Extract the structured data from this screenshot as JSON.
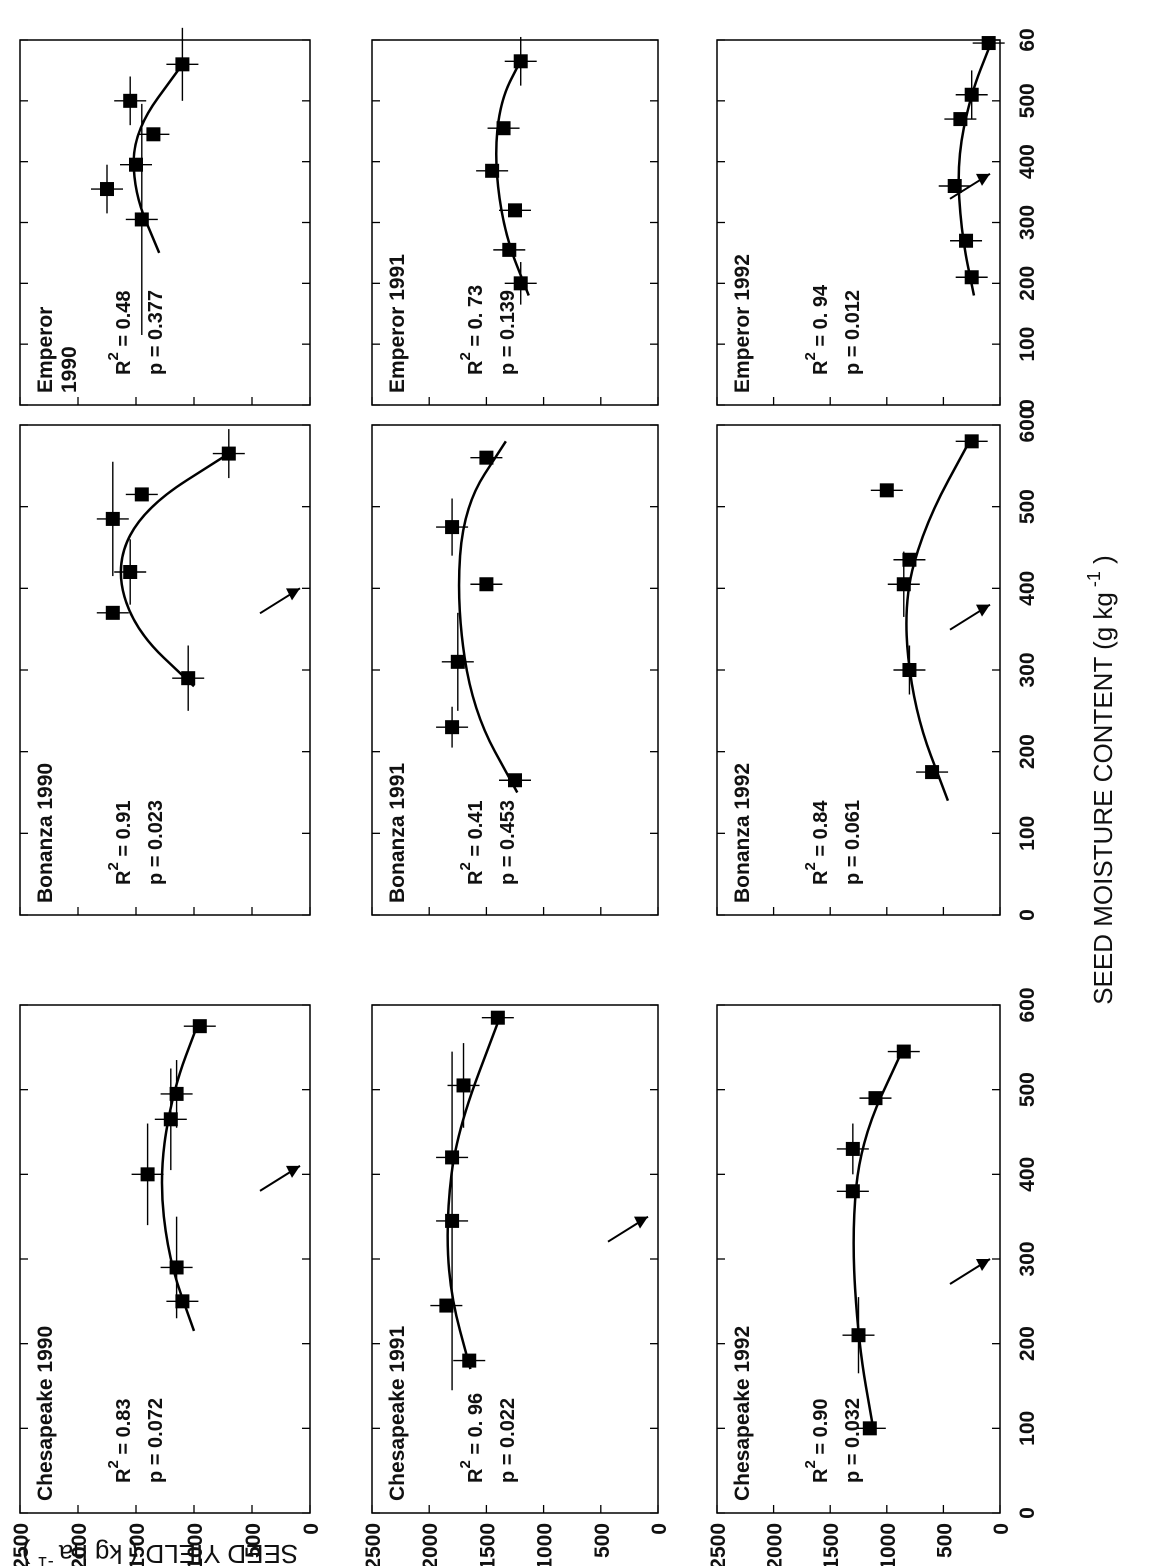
{
  "x_axis": {
    "label": "SEED MOISTURE CONTENT",
    "unit_base": "(g kg",
    "unit_exp": "-1",
    "unit_close": ")",
    "range": [
      0,
      600
    ],
    "ticks": [
      "0",
      "100",
      "200",
      "300",
      "400",
      "500",
      "600"
    ],
    "last_tick_in_right_column": "60"
  },
  "y_axis": {
    "label": "SEED YIELD",
    "unit_base": "( kg ha",
    "unit_exp": "-1",
    "unit_close": ")",
    "range": [
      0,
      2500
    ],
    "ticks": [
      "0",
      "500",
      "1000",
      "1500",
      "2000",
      "2500"
    ]
  },
  "chart_data": [
    {
      "type": "scatter",
      "title": "Chesapeake 1990",
      "year_row": 0,
      "cultivar_col": 0,
      "r2": "0.83",
      "p": "p = 0.072",
      "arrow_x": 410,
      "x": [
        250,
        290,
        400,
        465,
        495,
        575
      ],
      "y": [
        1100,
        1150,
        1400,
        1200,
        1150,
        950
      ],
      "err": [
        0,
        60,
        60,
        60,
        40,
        0
      ],
      "curve": [
        [
          215,
          1000
        ],
        [
          300,
          1220
        ],
        [
          400,
          1300
        ],
        [
          500,
          1180
        ],
        [
          580,
          960
        ]
      ]
    },
    {
      "type": "scatter",
      "title": "Chesapeake 1991",
      "year_row": 1,
      "cultivar_col": 0,
      "r2": "0. 96",
      "p": "p = 0.022",
      "arrow_x": 350,
      "x": [
        180,
        245,
        345,
        420,
        505,
        585
      ],
      "y": [
        1650,
        1850,
        1800,
        1800,
        1700,
        1400
      ],
      "err": [
        0,
        0,
        200,
        0,
        50,
        0
      ],
      "curve": [
        [
          170,
          1640
        ],
        [
          260,
          1820
        ],
        [
          350,
          1850
        ],
        [
          450,
          1760
        ],
        [
          590,
          1370
        ]
      ]
    },
    {
      "type": "scatter",
      "title": "Chesapeake 1992",
      "year_row": 2,
      "cultivar_col": 0,
      "r2": "0.90",
      "p": "p = 0.032",
      "arrow_x": 300,
      "x": [
        100,
        210,
        380,
        430,
        490,
        545
      ],
      "y": [
        1150,
        1250,
        1300,
        1300,
        1100,
        850
      ],
      "err": [
        0,
        45,
        0,
        30,
        0,
        0
      ],
      "curve": [
        [
          100,
          1120
        ],
        [
          200,
          1250
        ],
        [
          330,
          1310
        ],
        [
          440,
          1230
        ],
        [
          550,
          850
        ]
      ]
    },
    {
      "type": "scatter",
      "title": "Bonanza 1990",
      "year_row": 0,
      "cultivar_col": 1,
      "r2": "0.91",
      "p": "p  = 0.023",
      "arrow_x": 400,
      "x": [
        290,
        370,
        420,
        485,
        515,
        565
      ],
      "y": [
        1050,
        1700,
        1550,
        1700,
        1450,
        700
      ],
      "err": [
        40,
        0,
        40,
        70,
        0,
        30
      ],
      "curve": [
        [
          280,
          1000
        ],
        [
          350,
          1520
        ],
        [
          430,
          1680
        ],
        [
          500,
          1420
        ],
        [
          565,
          700
        ]
      ]
    },
    {
      "type": "scatter",
      "title": "Bonanza 1991",
      "year_row": 1,
      "cultivar_col": 1,
      "r2": "0.41",
      "p": "p  =  0.453",
      "arrow_x": null,
      "x": [
        165,
        230,
        310,
        475,
        405,
        560
      ],
      "y": [
        1250,
        1800,
        1750,
        1800,
        1500,
        1500
      ],
      "err": [
        0,
        25,
        60,
        35,
        0,
        0
      ],
      "curve": [
        [
          150,
          1230
        ],
        [
          250,
          1620
        ],
        [
          380,
          1760
        ],
        [
          500,
          1700
        ],
        [
          580,
          1330
        ]
      ]
    },
    {
      "type": "scatter",
      "title": "Bonanza 1992",
      "year_row": 2,
      "cultivar_col": 1,
      "r2": "0.84",
      "p": "p  =  0.061",
      "arrow_x": 380,
      "x": [
        175,
        300,
        405,
        435,
        520,
        580
      ],
      "y": [
        600,
        800,
        850,
        800,
        1000,
        250
      ],
      "err": [
        0,
        30,
        40,
        0,
        0,
        0
      ],
      "curve": [
        [
          140,
          460
        ],
        [
          250,
          760
        ],
        [
          380,
          860
        ],
        [
          480,
          660
        ],
        [
          585,
          250
        ]
      ]
    },
    {
      "type": "scatter",
      "title": "Emperor\n1990",
      "year_row": 0,
      "cultivar_col": 2,
      "r2": "0.48",
      "p": "p = 0.377",
      "arrow_x": null,
      "x": [
        305,
        355,
        395,
        445,
        500,
        560
      ],
      "y": [
        1450,
        1750,
        1500,
        1350,
        1550,
        1100
      ],
      "err": [
        190,
        40,
        0,
        0,
        40,
        60
      ],
      "curve": [
        [
          250,
          1300
        ],
        [
          350,
          1520
        ],
        [
          450,
          1520
        ],
        [
          560,
          1100
        ]
      ]
    },
    {
      "type": "scatter",
      "title": "Emperor 1991",
      "year_row": 1,
      "cultivar_col": 2,
      "r2": "0. 73",
      "p": "p  =  0.139",
      "arrow_x": null,
      "x": [
        200,
        255,
        320,
        385,
        455,
        565
      ],
      "y": [
        1200,
        1300,
        1250,
        1450,
        1350,
        1200
      ],
      "err": [
        35,
        0,
        0,
        0,
        0,
        40
      ],
      "curve": [
        [
          180,
          1130
        ],
        [
          280,
          1340
        ],
        [
          400,
          1430
        ],
        [
          500,
          1380
        ],
        [
          570,
          1190
        ]
      ]
    },
    {
      "type": "scatter",
      "title": "Emperor 1992",
      "year_row": 2,
      "cultivar_col": 2,
      "r2": "0. 94",
      "p": "p  =  0.012",
      "arrow_x": 380,
      "x": [
        210,
        270,
        360,
        470,
        510,
        595
      ],
      "y": [
        250,
        300,
        400,
        350,
        250,
        100
      ],
      "err": [
        0,
        0,
        0,
        0,
        40,
        0
      ],
      "curve": [
        [
          180,
          230
        ],
        [
          280,
          340
        ],
        [
          400,
          380
        ],
        [
          510,
          260
        ],
        [
          595,
          80
        ]
      ]
    }
  ]
}
